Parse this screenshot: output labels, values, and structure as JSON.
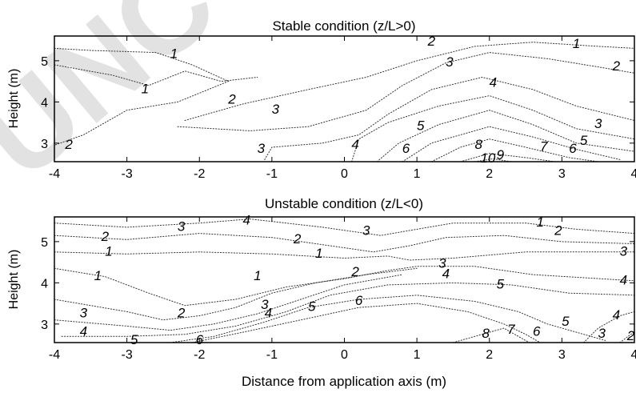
{
  "watermark": "UNCORRECTED",
  "chart_data": [
    {
      "type": "contour",
      "title": "Stable condition (z/L>0)",
      "xlabel": "",
      "ylabel": "Height (m)",
      "xlim": [
        -4,
        4
      ],
      "ylim": [
        2.55,
        5.6
      ],
      "xticks": [
        "-4",
        "-3",
        "-2",
        "-1",
        "0",
        "1",
        "2",
        "3",
        "4"
      ],
      "yticks": [
        "3",
        "4",
        "5"
      ],
      "grid": false,
      "contour_labels": [
        {
          "text": "1",
          "x": -2.35,
          "y": 5.15
        },
        {
          "text": "1",
          "x": -2.75,
          "y": 4.3
        },
        {
          "text": "1",
          "x": 3.2,
          "y": 5.4
        },
        {
          "text": "2",
          "x": -3.8,
          "y": 2.95
        },
        {
          "text": "2",
          "x": -1.55,
          "y": 4.05
        },
        {
          "text": "2",
          "x": 1.2,
          "y": 5.45
        },
        {
          "text": "2",
          "x": 3.75,
          "y": 4.85
        },
        {
          "text": "3",
          "x": -0.95,
          "y": 3.8
        },
        {
          "text": "3",
          "x": -1.15,
          "y": 2.85
        },
        {
          "text": "3",
          "x": 1.45,
          "y": 4.95
        },
        {
          "text": "3",
          "x": 3.5,
          "y": 3.45
        },
        {
          "text": "4",
          "x": 0.15,
          "y": 2.95
        },
        {
          "text": "4",
          "x": 2.05,
          "y": 4.45
        },
        {
          "text": "5",
          "x": 1.05,
          "y": 3.4
        },
        {
          "text": "5",
          "x": 3.3,
          "y": 3.05
        },
        {
          "text": "6",
          "x": 0.85,
          "y": 2.85
        },
        {
          "text": "6",
          "x": 3.15,
          "y": 2.85
        },
        {
          "text": "7",
          "x": 2.75,
          "y": 2.9
        },
        {
          "text": "8",
          "x": 1.85,
          "y": 2.95
        },
        {
          "text": "9",
          "x": 2.15,
          "y": 2.7
        },
        {
          "text": "10",
          "x": 1.98,
          "y": 2.62
        }
      ]
    },
    {
      "type": "contour",
      "title": "Unstable condition (z/L<0)",
      "xlabel": "Distance from application axis (m)",
      "ylabel": "Height (m)",
      "xlim": [
        -4,
        4
      ],
      "ylim": [
        2.55,
        5.6
      ],
      "xticks": [
        "-4",
        "-3",
        "-2",
        "-1",
        "0",
        "1",
        "2",
        "3",
        "4"
      ],
      "yticks": [
        "3",
        "4",
        "5"
      ],
      "grid": false,
      "contour_labels": [
        {
          "text": "1",
          "x": -3.25,
          "y": 4.75
        },
        {
          "text": "1",
          "x": -3.4,
          "y": 4.15
        },
        {
          "text": "1",
          "x": -0.35,
          "y": 4.7
        },
        {
          "text": "1",
          "x": -1.2,
          "y": 4.15
        },
        {
          "text": "1",
          "x": 2.7,
          "y": 5.45
        },
        {
          "text": "2",
          "x": -3.3,
          "y": 5.1
        },
        {
          "text": "2",
          "x": -0.65,
          "y": 5.05
        },
        {
          "text": "2",
          "x": 0.15,
          "y": 4.25
        },
        {
          "text": "2",
          "x": -2.25,
          "y": 3.25
        },
        {
          "text": "2",
          "x": 2.95,
          "y": 5.25
        },
        {
          "text": "2",
          "x": 3.95,
          "y": 2.7
        },
        {
          "text": "3",
          "x": -2.25,
          "y": 5.35
        },
        {
          "text": "3",
          "x": -3.6,
          "y": 3.25
        },
        {
          "text": "3",
          "x": -1.1,
          "y": 3.45
        },
        {
          "text": "3",
          "x": 0.3,
          "y": 5.25
        },
        {
          "text": "3",
          "x": 1.35,
          "y": 4.45
        },
        {
          "text": "3",
          "x": 3.85,
          "y": 4.75
        },
        {
          "text": "3",
          "x": 3.55,
          "y": 2.75
        },
        {
          "text": "4",
          "x": -1.35,
          "y": 5.5
        },
        {
          "text": "4",
          "x": -3.6,
          "y": 2.8
        },
        {
          "text": "4",
          "x": -1.05,
          "y": 3.25
        },
        {
          "text": "4",
          "x": 1.4,
          "y": 4.2
        },
        {
          "text": "4",
          "x": 3.85,
          "y": 4.05
        },
        {
          "text": "4",
          "x": 3.75,
          "y": 3.2
        },
        {
          "text": "5",
          "x": -2.9,
          "y": 2.6
        },
        {
          "text": "5",
          "x": -0.45,
          "y": 3.4
        },
        {
          "text": "5",
          "x": 2.15,
          "y": 3.95
        },
        {
          "text": "5",
          "x": 3.05,
          "y": 3.05
        },
        {
          "text": "6",
          "x": -2.0,
          "y": 2.6
        },
        {
          "text": "6",
          "x": 0.2,
          "y": 3.55
        },
        {
          "text": "6",
          "x": 2.65,
          "y": 2.8
        },
        {
          "text": "7",
          "x": 2.3,
          "y": 2.85
        },
        {
          "text": "8",
          "x": 1.95,
          "y": 2.75
        }
      ]
    }
  ]
}
